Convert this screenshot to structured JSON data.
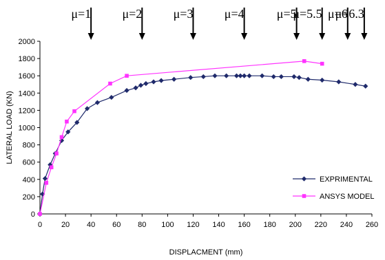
{
  "chart_data": {
    "type": "line",
    "xlabel": "DISPLACMENT (mm)",
    "ylabel": "LATERAL LOAD (KN)",
    "xlim": [
      0,
      260
    ],
    "ylim": [
      0,
      2000
    ],
    "x_ticks": [
      0,
      20,
      40,
      60,
      80,
      100,
      120,
      140,
      160,
      180,
      200,
      220,
      240,
      260
    ],
    "y_ticks": [
      0,
      200,
      400,
      600,
      800,
      1000,
      1200,
      1400,
      1600,
      1800,
      2000
    ],
    "legend_position": "bottom-right",
    "grid": false,
    "series": [
      {
        "name": "EXPRIMENTAL",
        "color": "#1f2a6b",
        "marker": "diamond",
        "x": [
          0,
          2,
          4,
          8,
          12,
          17,
          22,
          29,
          37,
          45,
          56,
          68,
          75,
          79,
          83,
          89,
          95,
          105,
          118,
          128,
          137,
          146,
          154,
          157,
          160,
          164,
          174,
          183,
          189,
          199,
          203,
          210,
          221,
          234,
          247,
          255
        ],
        "y": [
          0,
          230,
          410,
          570,
          700,
          850,
          950,
          1060,
          1220,
          1290,
          1350,
          1430,
          1460,
          1490,
          1510,
          1530,
          1545,
          1560,
          1580,
          1590,
          1600,
          1600,
          1600,
          1600,
          1600,
          1600,
          1600,
          1590,
          1590,
          1590,
          1580,
          1560,
          1550,
          1530,
          1500,
          1480
        ]
      },
      {
        "name": "ANSYS MODEL",
        "color": "#ff33ff",
        "marker": "square",
        "x": [
          0,
          5,
          9,
          13,
          17,
          21,
          27,
          55,
          68,
          207,
          221
        ],
        "y": [
          0,
          360,
          540,
          700,
          890,
          1070,
          1190,
          1510,
          1600,
          1770,
          1740
        ]
      }
    ],
    "annotations": [
      {
        "label": "μ=1",
        "x": 40
      },
      {
        "label": "μ=2",
        "x": 80
      },
      {
        "label": "μ=3",
        "x": 120
      },
      {
        "label": "μ=4",
        "x": 160
      },
      {
        "label": "μ=5",
        "x": 201
      },
      {
        "label": "μ=5.5",
        "x": 221
      },
      {
        "label": "μ=6",
        "x": 241
      },
      {
        "label": "μ=6.3",
        "x": 254
      }
    ]
  }
}
